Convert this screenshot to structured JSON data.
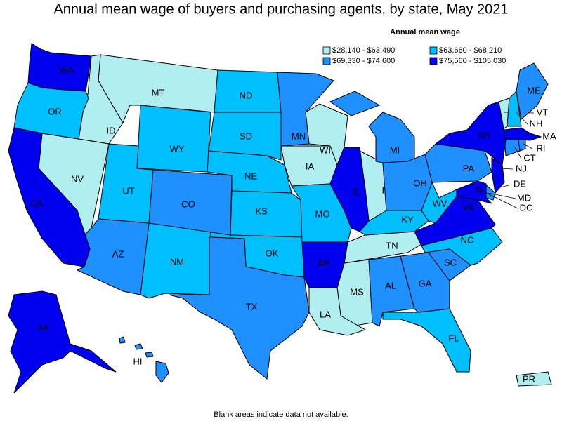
{
  "title": "Annual mean wage of buyers and purchasing agents, by state, May 2021",
  "legend": {
    "title": "Annual mean wage",
    "items": [
      {
        "label": "$28,140 - $63,490",
        "color": "#b0eef0",
        "states": [
          "MT",
          "ID",
          "NV",
          "IA",
          "WI",
          "IN",
          "TN",
          "MS",
          "LA",
          "VT",
          "PR"
        ]
      },
      {
        "label": "$63,660 - $68,210",
        "color": "#00bfff",
        "states": [
          "OR",
          "ND",
          "SD",
          "WY",
          "UT",
          "NE",
          "KS",
          "NM",
          "OK",
          "MO",
          "KY",
          "WV",
          "NC",
          "FL",
          "NH"
        ]
      },
      {
        "label": "$69,330 - $74,600",
        "color": "#1e90ff",
        "states": [
          "MN",
          "MI",
          "OH",
          "PA",
          "CO",
          "AZ",
          "TX",
          "AL",
          "GA",
          "SC",
          "ME",
          "HI",
          "CT",
          "RI",
          "DE"
        ]
      },
      {
        "label": "$75,560 - $105,030",
        "color": "#0000ee",
        "states": [
          "WA",
          "CA",
          "AK",
          "IL",
          "AR",
          "NY",
          "NJ",
          "MA",
          "MD",
          "VA",
          "DC"
        ]
      }
    ]
  },
  "footnote": "Blank areas indicate data not available."
}
